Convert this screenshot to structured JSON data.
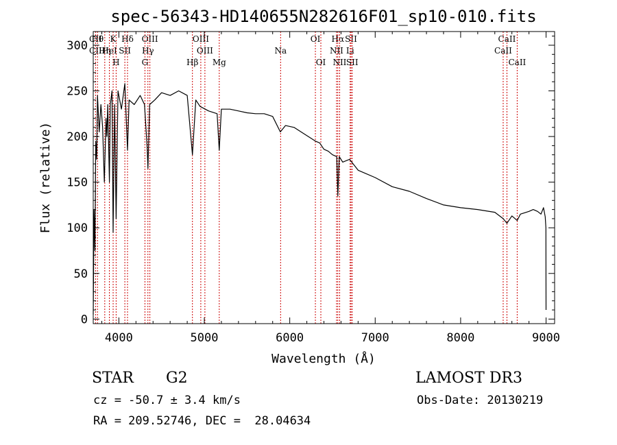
{
  "chart_data": {
    "type": "line",
    "title": "spec-56343-HD140655N282616F01_sp10-010.fits",
    "xlabel": "Wavelength (Å)",
    "ylabel": "Flux (relative)",
    "xlim": [
      3700,
      9100
    ],
    "ylim": [
      -5,
      315
    ],
    "x_ticks": [
      4000,
      5000,
      6000,
      7000,
      8000,
      9000
    ],
    "y_ticks": [
      0,
      50,
      100,
      150,
      200,
      250,
      300
    ],
    "series": [
      {
        "name": "flux",
        "x": [
          3700,
          3710,
          3720,
          3730,
          3740,
          3750,
          3770,
          3790,
          3810,
          3830,
          3850,
          3860,
          3870,
          3889,
          3900,
          3920,
          3933,
          3950,
          3968,
          3990,
          4030,
          4070,
          4101,
          4120,
          4180,
          4250,
          4300,
          4330,
          4340,
          4360,
          4420,
          4500,
          4600,
          4700,
          4800,
          4861,
          4900,
          4950,
          5050,
          5150,
          5175,
          5200,
          5300,
          5400,
          5500,
          5600,
          5700,
          5800,
          5890,
          5950,
          6050,
          6150,
          6250,
          6300,
          6350,
          6400,
          6450,
          6500,
          6550,
          6563,
          6580,
          6620,
          6700,
          6800,
          7000,
          7200,
          7400,
          7600,
          7800,
          8000,
          8200,
          8400,
          8498,
          8542,
          8600,
          8662,
          8700,
          8800,
          8850,
          8900,
          8940,
          8970,
          8990,
          8998,
          9000
        ],
        "values": [
          5,
          120,
          75,
          195,
          175,
          245,
          205,
          235,
          210,
          150,
          220,
          200,
          235,
          150,
          235,
          250,
          95,
          235,
          110,
          250,
          230,
          258,
          185,
          240,
          235,
          245,
          235,
          190,
          165,
          235,
          240,
          248,
          245,
          250,
          245,
          180,
          240,
          233,
          228,
          225,
          185,
          230,
          230,
          228,
          226,
          225,
          225,
          222,
          205,
          212,
          210,
          204,
          198,
          195,
          193,
          186,
          184,
          180,
          178,
          135,
          178,
          172,
          175,
          163,
          155,
          145,
          140,
          132,
          125,
          122,
          120,
          117,
          110,
          105,
          113,
          108,
          115,
          118,
          120,
          118,
          115,
          122,
          112,
          100,
          10
        ]
      }
    ],
    "spectral_lines": [
      {
        "label": "CII",
        "wave": 3727,
        "row": 0
      },
      {
        "label": "Hθ",
        "wave": 3750,
        "row": 0
      },
      {
        "label": "CII",
        "wave": 3727,
        "row": 1
      },
      {
        "label": "Hη",
        "wave": 3835,
        "row": 1
      },
      {
        "label": "K",
        "wave": 3933,
        "row": 0
      },
      {
        "label": "HeI",
        "wave": 3889,
        "row": 1
      },
      {
        "label": "H",
        "wave": 3968,
        "row": 2
      },
      {
        "label": "SII",
        "wave": 4070,
        "row": 1
      },
      {
        "label": "Hδ",
        "wave": 4101,
        "row": 0
      },
      {
        "label": "OIII",
        "wave": 4363,
        "row": 0
      },
      {
        "label": "Hγ",
        "wave": 4340,
        "row": 1
      },
      {
        "label": "G",
        "wave": 4305,
        "row": 2
      },
      {
        "label": "Hβ",
        "wave": 4861,
        "row": 2
      },
      {
        "label": "OIII",
        "wave": 4959,
        "row": 0
      },
      {
        "label": "OIII",
        "wave": 5007,
        "row": 1
      },
      {
        "label": "Mg",
        "wave": 5175,
        "row": 2
      },
      {
        "label": "Na",
        "wave": 5893,
        "row": 1
      },
      {
        "label": "OI",
        "wave": 6300,
        "row": 0
      },
      {
        "label": "OI",
        "wave": 6364,
        "row": 2
      },
      {
        "label": "Hα",
        "wave": 6563,
        "row": 0
      },
      {
        "label": "NII",
        "wave": 6548,
        "row": 1
      },
      {
        "label": "NII",
        "wave": 6584,
        "row": 2
      },
      {
        "label": "SII",
        "wave": 6717,
        "row": 0
      },
      {
        "label": "Li",
        "wave": 6707,
        "row": 1
      },
      {
        "label": "SII",
        "wave": 6731,
        "row": 2
      },
      {
        "label": "CaII",
        "wave": 8542,
        "row": 0
      },
      {
        "label": "CaII",
        "wave": 8498,
        "row": 1
      },
      {
        "label": "CaII",
        "wave": 8662,
        "row": 2
      }
    ]
  },
  "info": {
    "object_class": "STAR",
    "subclass": "G2",
    "survey": "LAMOST DR3",
    "cz": "cz = -50.7 ± 3.4 km/s",
    "obs_date": "Obs-Date: 20130219",
    "coords": "RA = 209.52746, DEC =  28.04634"
  }
}
